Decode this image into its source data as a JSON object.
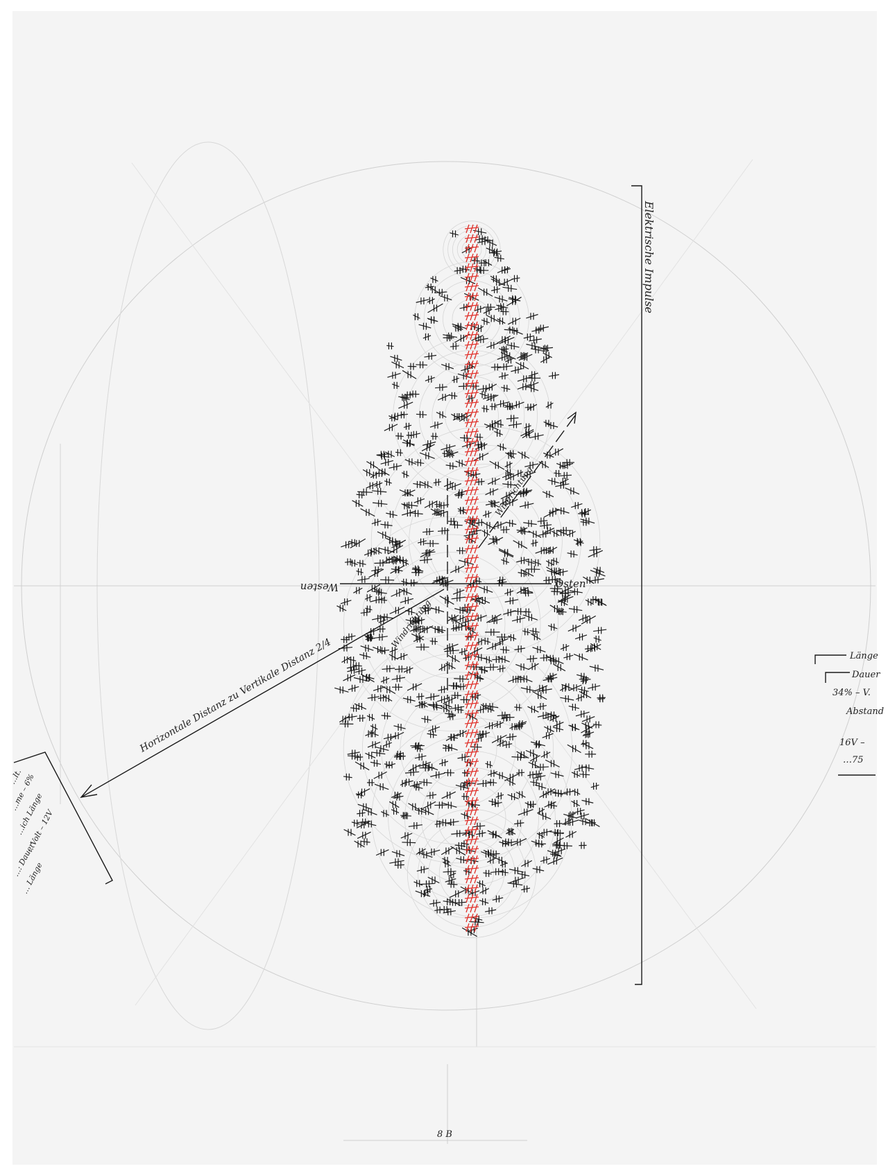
{
  "drawing": {
    "vertical_label": "Elektrische Impulse",
    "west_label": "Westen",
    "east_label": "Osten",
    "diagonal_label": "Horizontale Distanz zu Vertikale Distanz 2/4",
    "wind_label_upper": "Windrichtung",
    "wind_label_lower": "Windrichtung",
    "sheet_number": "8 B"
  },
  "notes_right": {
    "lines": [
      "Länge",
      "Dauer",
      "34% – V.",
      "Abstand",
      "16V –",
      "…75"
    ]
  },
  "notes_left": {
    "lines": [
      "…lt.",
      "…me – 6%",
      "…ich Länge",
      "…Volt – 12V",
      "…: Dauer",
      "… Länge"
    ]
  },
  "colors": {
    "paper": "#f4f4f4",
    "ink": "#1a1a1a",
    "pencil": "#c8c8c8",
    "red_ink": "#e0302a"
  }
}
